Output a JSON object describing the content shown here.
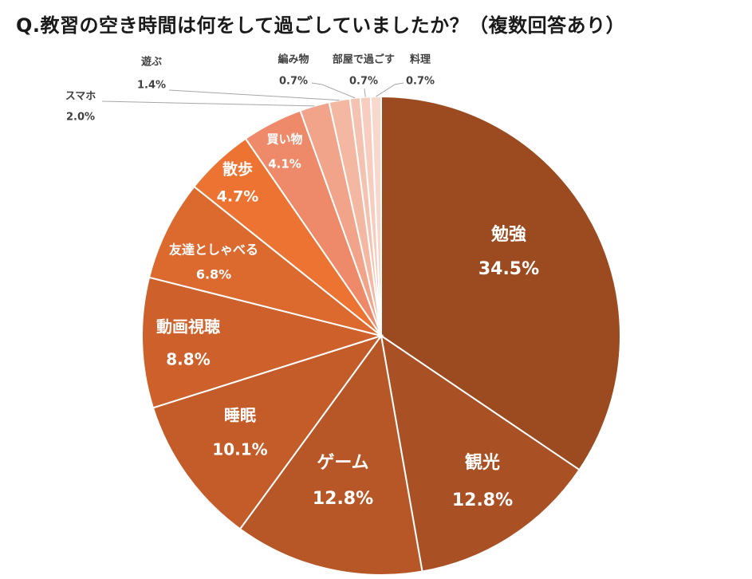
{
  "chart_data": {
    "type": "pie",
    "title": "Q.教習の空き時間は何をして過ごしていましたか？（複数回答あり）",
    "categories": [
      "勉強",
      "観光",
      "ゲーム",
      "睡眠",
      "動画視聴",
      "友達としゃべる",
      "散歩",
      "買い物",
      "スマホ",
      "遊ぶ",
      "編み物",
      "部屋で過ごす",
      "料理"
    ],
    "values": [
      34.5,
      12.8,
      12.8,
      10.1,
      8.8,
      6.8,
      4.7,
      4.1,
      2.0,
      1.4,
      0.7,
      0.7,
      0.7
    ],
    "unit": "%",
    "colors": [
      "#9c4a1f",
      "#a95024",
      "#b75626",
      "#c35c29",
      "#cd602b",
      "#dc6a2f",
      "#ec7331",
      "#ee8a69",
      "#f1a48a",
      "#f3b7a2",
      "#f4c2b1",
      "#f6cdbf",
      "#f7d8cd"
    ],
    "legend": false
  }
}
